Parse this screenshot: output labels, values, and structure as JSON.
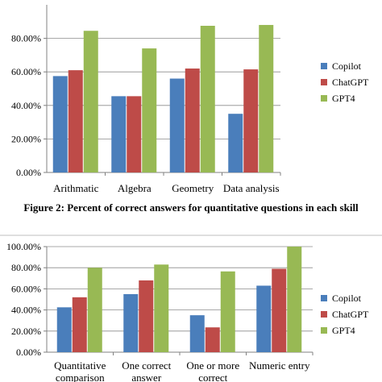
{
  "caption": "Figure 2: Percent of correct answers for quantitative questions in each skill",
  "chart_data": [
    {
      "type": "bar",
      "categories": [
        "Arithmatic",
        "Algebra",
        "Geometry",
        "Data analysis"
      ],
      "series": [
        {
          "name": "Copilot",
          "color": "#4a7ebb",
          "values": [
            57.5,
            45.5,
            56,
            35
          ]
        },
        {
          "name": "ChatGPT",
          "color": "#be4b48",
          "values": [
            61,
            45.5,
            62,
            61.5
          ]
        },
        {
          "name": "GPT4",
          "color": "#98b954",
          "values": [
            84.5,
            74,
            87.5,
            88
          ]
        }
      ],
      "yticks": [
        "0.00%",
        "20.00%",
        "40.00%",
        "60.00%",
        "80.00%"
      ],
      "ylim": [
        0,
        100
      ],
      "grid": true,
      "legend": "right"
    },
    {
      "type": "bar",
      "categories": [
        "Quantitative comparison",
        "One correct answer",
        "One or more correct",
        "Numeric entry"
      ],
      "series": [
        {
          "name": "Copilot",
          "color": "#4a7ebb",
          "values": [
            42.5,
            55,
            35,
            63
          ]
        },
        {
          "name": "ChatGPT",
          "color": "#be4b48",
          "values": [
            52,
            68,
            23.5,
            79
          ]
        },
        {
          "name": "GPT4",
          "color": "#98b954",
          "values": [
            80,
            83,
            76.5,
            100
          ]
        }
      ],
      "yticks": [
        "0.00%",
        "20.00%",
        "40.00%",
        "60.00%",
        "80.00%",
        "100.00%"
      ],
      "ylim": [
        0,
        100
      ],
      "grid": true,
      "legend": "right"
    }
  ]
}
